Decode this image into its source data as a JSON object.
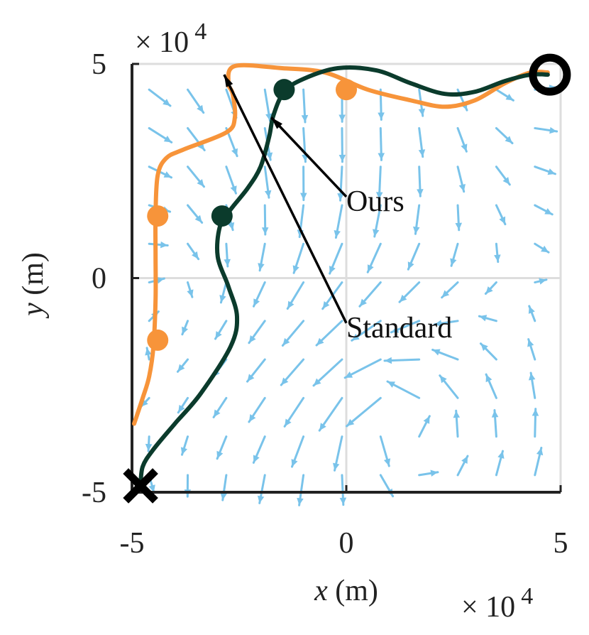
{
  "chart_data": {
    "type": "line",
    "title": "",
    "xlabel": {
      "var": "x",
      "unit": "(m)"
    },
    "ylabel": {
      "var": "y",
      "unit": "(m)"
    },
    "xlim": [
      -5,
      5
    ],
    "ylim": [
      -5,
      5
    ],
    "x_ticks": [
      "-5",
      "0",
      "5"
    ],
    "y_ticks": [
      "-5",
      "0",
      "5"
    ],
    "x_multiplier": {
      "base": "× 10",
      "exp": "4"
    },
    "y_multiplier": {
      "base": "× 10",
      "exp": "4"
    },
    "grid": true,
    "background_field": "vector-field-arrows",
    "colors": {
      "ours": "#0b3b2c",
      "standard": "#f7943a",
      "field": "#79c3ea",
      "grid": "#dddddd",
      "axis": "#222222"
    },
    "series": [
      {
        "key": "ours",
        "points": [
          [
            -4.8,
            -4.85
          ],
          [
            -4.75,
            -4.4
          ],
          [
            -4.5,
            -4.0
          ],
          [
            -4.0,
            -3.4
          ],
          [
            -3.4,
            -2.7
          ],
          [
            -2.7,
            -1.6
          ],
          [
            -2.55,
            -0.9
          ],
          [
            -2.75,
            -0.2
          ],
          [
            -3.0,
            0.5
          ],
          [
            -2.95,
            1.2
          ],
          [
            -2.7,
            1.6
          ],
          [
            -2.3,
            2.1
          ],
          [
            -2.0,
            2.6
          ],
          [
            -1.8,
            3.3
          ],
          [
            -1.7,
            3.8
          ],
          [
            -1.45,
            4.35
          ],
          [
            -1.0,
            4.65
          ],
          [
            -0.2,
            4.9
          ],
          [
            0.7,
            4.85
          ],
          [
            1.5,
            4.55
          ],
          [
            2.3,
            4.3
          ],
          [
            3.0,
            4.35
          ],
          [
            3.7,
            4.6
          ],
          [
            4.3,
            4.75
          ],
          [
            4.7,
            4.75
          ]
        ]
      },
      {
        "key": "standard",
        "points": [
          [
            -4.95,
            -3.4
          ],
          [
            -4.75,
            -2.8
          ],
          [
            -4.6,
            -2.3
          ],
          [
            -4.5,
            -1.6
          ],
          [
            -4.45,
            -0.5
          ],
          [
            -4.45,
            0.5
          ],
          [
            -4.45,
            1.5
          ],
          [
            -4.4,
            2.4
          ],
          [
            -4.2,
            2.8
          ],
          [
            -3.8,
            3.0
          ],
          [
            -2.8,
            3.4
          ],
          [
            -2.6,
            3.75
          ],
          [
            -2.65,
            4.3
          ],
          [
            -2.75,
            4.55
          ],
          [
            -2.6,
            4.95
          ],
          [
            -1.5,
            4.9
          ],
          [
            -0.5,
            4.8
          ],
          [
            0.5,
            4.4
          ],
          [
            1.5,
            4.15
          ],
          [
            2.3,
            4.0
          ],
          [
            3.0,
            4.15
          ],
          [
            3.7,
            4.55
          ],
          [
            4.3,
            4.8
          ],
          [
            4.7,
            4.8
          ]
        ]
      }
    ],
    "markers": [
      {
        "series": "ours",
        "x": -2.9,
        "y": 1.45
      },
      {
        "series": "ours",
        "x": -1.45,
        "y": 4.4
      },
      {
        "series": "standard",
        "x": -4.4,
        "y": 1.45
      },
      {
        "series": "standard",
        "x": -4.4,
        "y": -1.45
      },
      {
        "series": "standard",
        "x": 0.0,
        "y": 4.4
      }
    ],
    "start": {
      "symbol": "cross",
      "x": -4.8,
      "y": -4.85
    },
    "goal": {
      "symbol": "circle",
      "x": 4.75,
      "y": 4.75
    },
    "annotations": [
      {
        "text": "Ours",
        "label_x": 0.0,
        "label_y": 1.9,
        "tip_x": -1.75,
        "tip_y": 3.75
      },
      {
        "text": "Standard",
        "label_x": 0.0,
        "label_y": -1.05,
        "tip_x": -2.85,
        "tip_y": 4.75
      }
    ]
  }
}
